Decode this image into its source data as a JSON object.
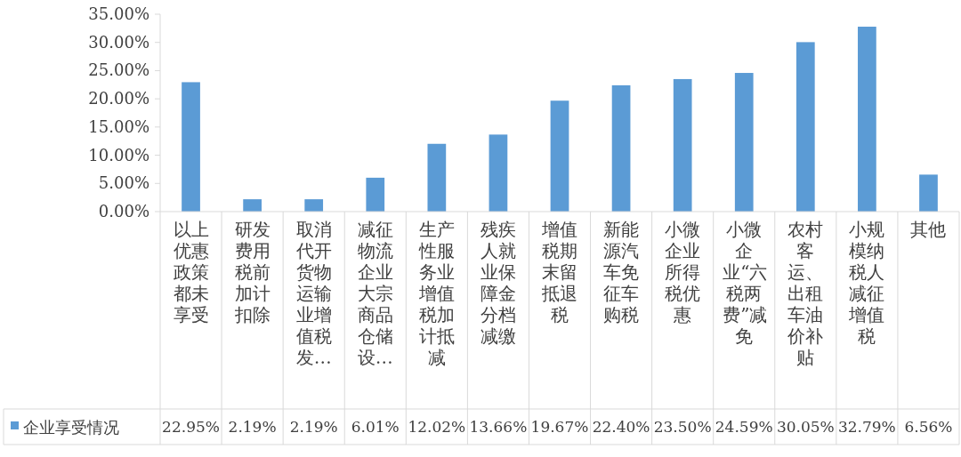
{
  "chart_data": {
    "type": "bar",
    "categories": [
      "以上优惠政策都未享受",
      "研发费用税前加计扣除",
      "取消代开货物运输业增值税发…",
      "减征物流企业大宗商品仓储设…",
      "生产性服务业增值税加计抵减",
      "残疾人就业保障金分档减缴",
      "增值税期末留抵退税",
      "新能源汽车免征车购税",
      "小微企业所得税优惠",
      "小微企业“六税两费”减免",
      "农村客运、出租车油价补贴",
      "小规模纳税人减征增值税",
      "其他"
    ],
    "series": [
      {
        "name": "企业享受情况",
        "color": "#5b9bd5",
        "values": [
          22.95,
          2.19,
          2.19,
          6.01,
          12.02,
          13.66,
          19.67,
          22.4,
          23.5,
          24.59,
          30.05,
          32.79,
          6.56
        ],
        "value_labels": [
          "22.95%",
          "2.19%",
          "2.19%",
          "6.01%",
          "12.02%",
          "13.66%",
          "19.67%",
          "22.40%",
          "23.50%",
          "24.59%",
          "30.05%",
          "32.79%",
          "6.56%"
        ]
      }
    ],
    "ylim": [
      0,
      35
    ],
    "yticks": [
      {
        "value": 0,
        "label": "0.00%"
      },
      {
        "value": 5,
        "label": "5.00%"
      },
      {
        "value": 10,
        "label": "10.00%"
      },
      {
        "value": 15,
        "label": "15.00%"
      },
      {
        "value": 20,
        "label": "20.00%"
      },
      {
        "value": 25,
        "label": "25.00%"
      },
      {
        "value": 30,
        "label": "30.00%"
      },
      {
        "value": 35,
        "label": "35.00%"
      }
    ],
    "legend": "bottom"
  }
}
